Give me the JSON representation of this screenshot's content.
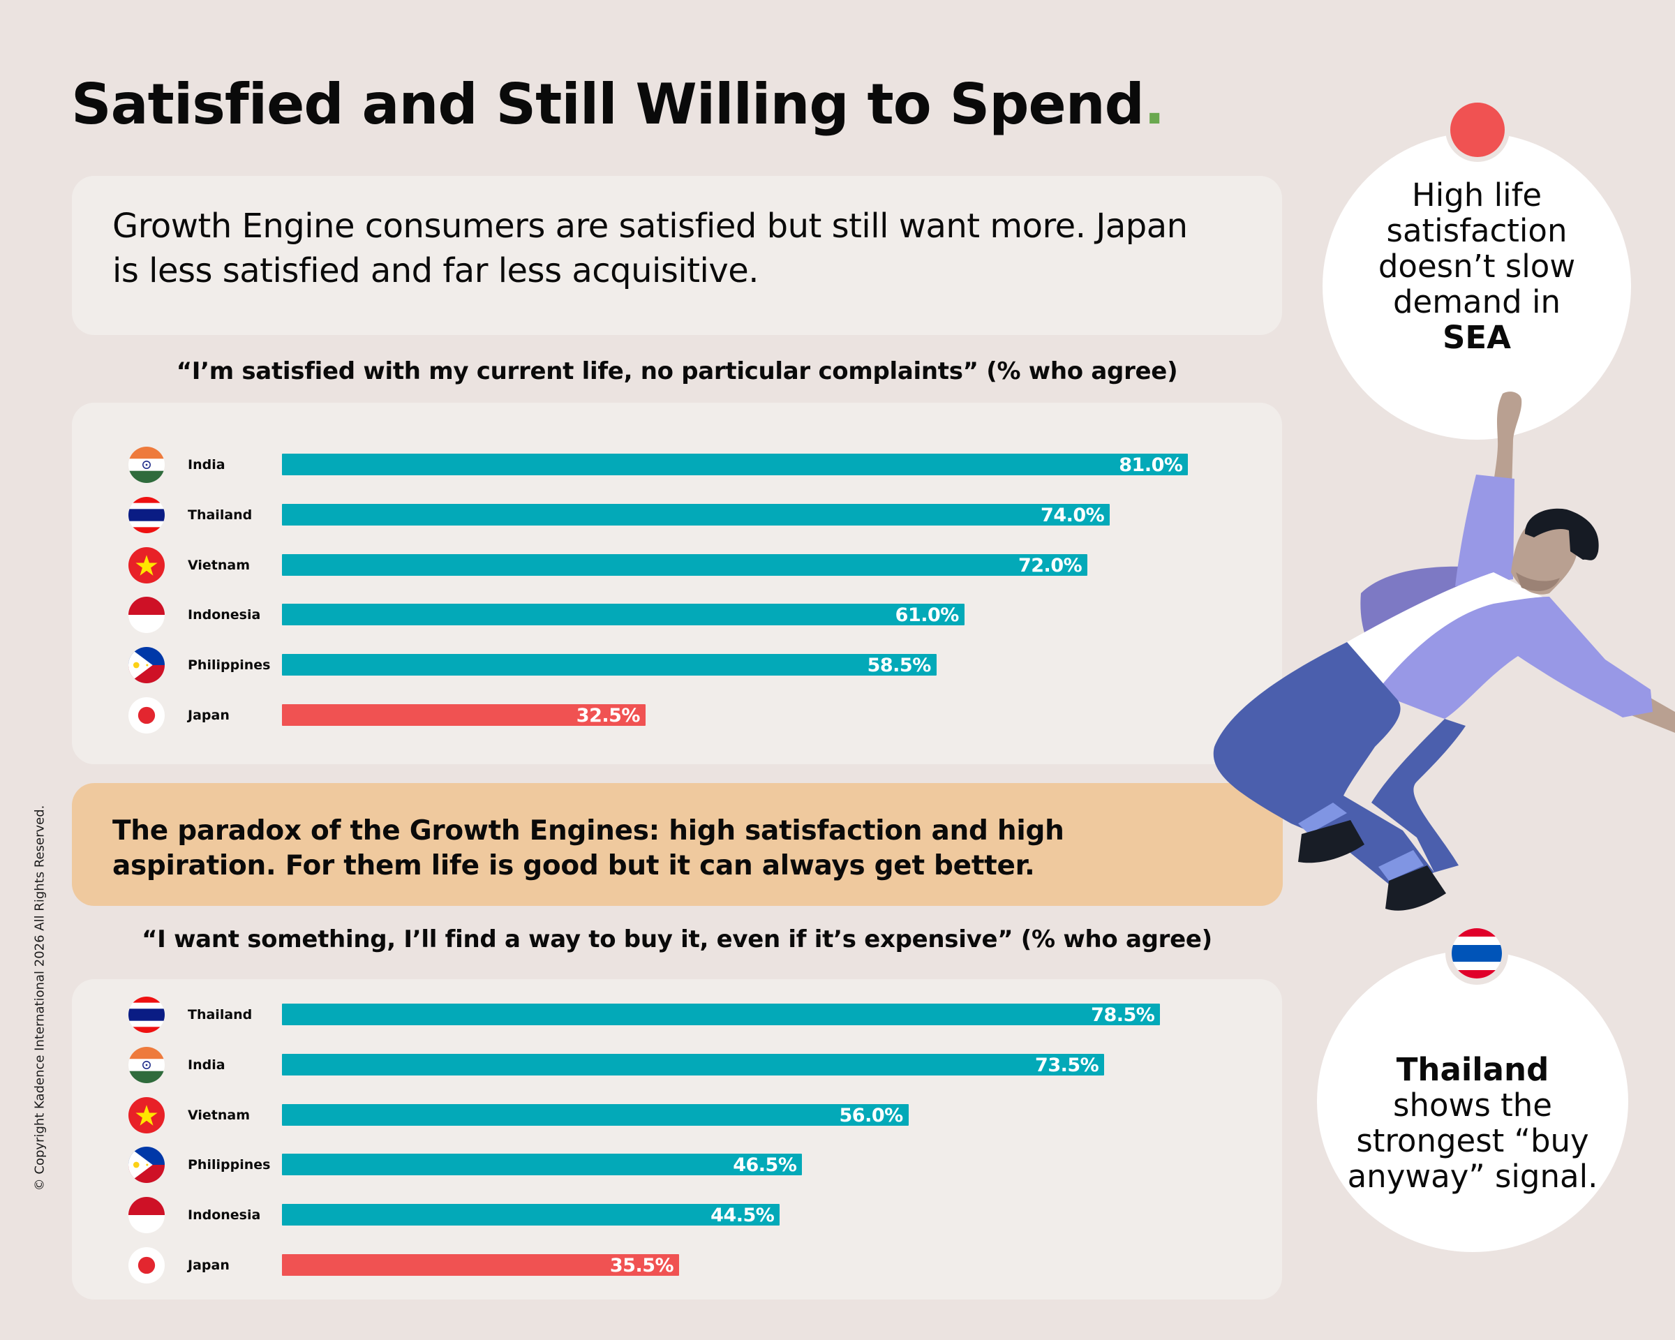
{
  "header": {
    "title": "Satisfied and Still Willing to Spend",
    "title_dot": ".",
    "title_dot_color": "#6aa84f"
  },
  "summary": {
    "text": "Growth Engine consumers are satisfied but still want more. Japan is less satisfied and far less acquisitive."
  },
  "paradox": {
    "text": "The paradox of the Growth Engines: high satisfaction and high aspiration. For them life is good but it can always get better."
  },
  "bubbles": {
    "top": {
      "text_regular": "High life satisfaction doesn’t slow demand in",
      "text_bold": "SEA",
      "icon": "red-dot-icon"
    },
    "bottom": {
      "text_bold": "Thailand",
      "text_regular": "shows the strongest “buy anyway” signal.",
      "icon": "thailand-flag-icon"
    }
  },
  "copyright": "© Copyright Kadence International 2026 All Rights Reserved.",
  "colors": {
    "background": "#ebe3e0",
    "panel": "#f1edea",
    "bar_primary": "#03a9b8",
    "bar_highlight": "#f05252",
    "paradox_panel": "#efc99e"
  },
  "chart_data": [
    {
      "type": "bar",
      "orientation": "horizontal",
      "title": "“I’m satisfied with my current life, no particular complaints” (% who agree)",
      "xlabel": "",
      "ylabel": "",
      "categories": [
        "India",
        "Thailand",
        "Vietnam",
        "Indonesia",
        "Philippines",
        "Japan"
      ],
      "values": [
        81.0,
        74.0,
        72.0,
        61.0,
        58.5,
        32.5
      ],
      "labels": [
        "81.0%",
        "74.0%",
        "72.0%",
        "61.0%",
        "58.5%",
        "32.5%"
      ],
      "highlight": "Japan",
      "grid": false,
      "legend": "none",
      "xlim": [
        0,
        100
      ]
    },
    {
      "type": "bar",
      "orientation": "horizontal",
      "title": "“I want something, I’ll find a way to buy it, even if it’s expensive” (% who agree)",
      "xlabel": "",
      "ylabel": "",
      "categories": [
        "Thailand",
        "India",
        "Vietnam",
        "Philippines",
        "Indonesia",
        "Japan"
      ],
      "values": [
        78.5,
        73.5,
        56.0,
        46.5,
        44.5,
        35.5
      ],
      "labels": [
        "78.5%",
        "73.5%",
        "56.0%",
        "46.5%",
        "44.5%",
        "35.5%"
      ],
      "highlight": "Japan",
      "grid": false,
      "legend": "none",
      "xlim": [
        0,
        100
      ]
    }
  ]
}
